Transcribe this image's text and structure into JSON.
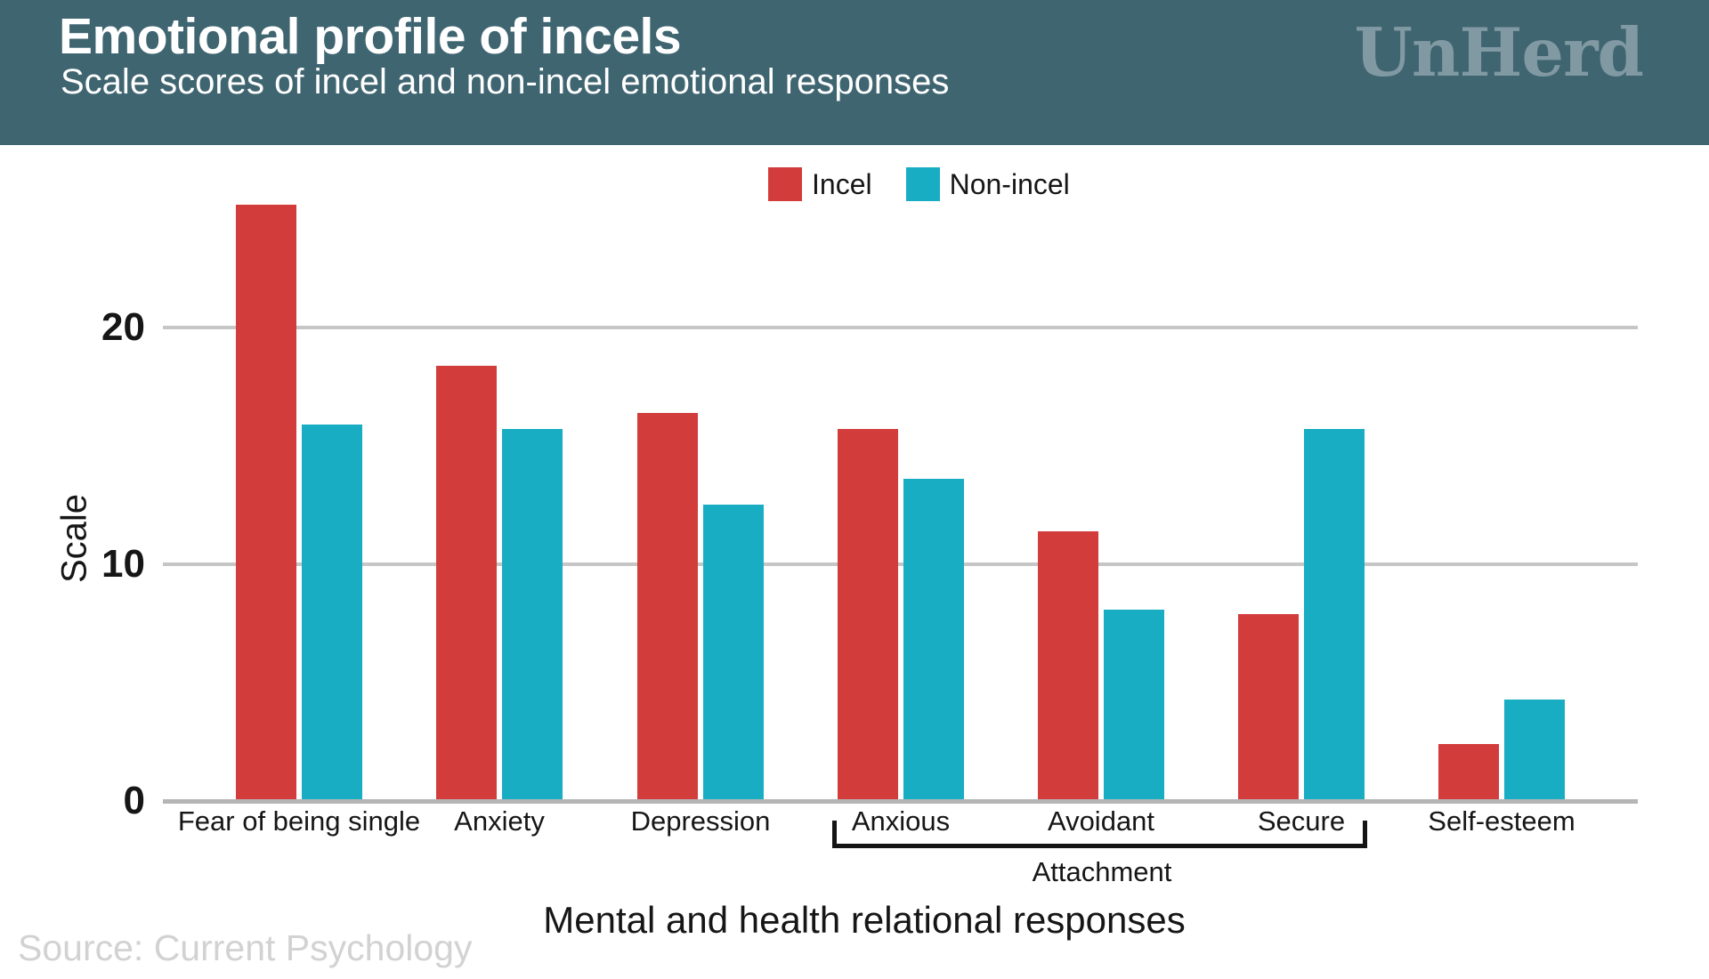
{
  "header": {
    "title": "Emotional profile of incels",
    "subtitle": "Scale scores of incel and non-incel emotional responses",
    "logo_text": "UnHerd"
  },
  "chart_data": {
    "type": "bar",
    "title": "Emotional profile of incels",
    "subtitle": "Scale scores of incel and non-incel emotional responses",
    "categories": [
      "Fear of being single",
      "Anxiety",
      "Depression",
      "Anxious",
      "Avoidant",
      "Secure",
      "Self-esteem"
    ],
    "series": [
      {
        "name": "Incel",
        "color": "#d23c3b",
        "values": [
          25.2,
          18.4,
          16.4,
          15.7,
          11.4,
          7.9,
          2.4
        ]
      },
      {
        "name": "Non-incel",
        "color": "#19adc4",
        "values": [
          15.9,
          15.7,
          12.5,
          13.6,
          8.1,
          15.7,
          4.3
        ]
      }
    ],
    "ylabel": "Scale",
    "xlabel": "Mental and health relational responses",
    "yticks": [
      0,
      10,
      20
    ],
    "ylim": [
      0,
      26.3
    ],
    "grid": "horizontal-only",
    "legend_position": "top-center",
    "group_bracket": {
      "label": "Attachment",
      "from_category": "Anxious",
      "to_category": "Secure"
    }
  },
  "axes": {
    "ylabel": "Scale",
    "xlabel": "Mental and health relational responses",
    "bracket_label": "Attachment"
  },
  "footer": {
    "source": "Source: Current Psychology"
  },
  "colors": {
    "header_bg": "#3f6571",
    "logo": "#8099a3",
    "incel": "#d23c3b",
    "non_incel": "#19adc4",
    "gridline": "#c6c6c6",
    "axis_line": "#b5b5b5",
    "bracket": "#141414",
    "source_text": "#d2d2d2"
  }
}
